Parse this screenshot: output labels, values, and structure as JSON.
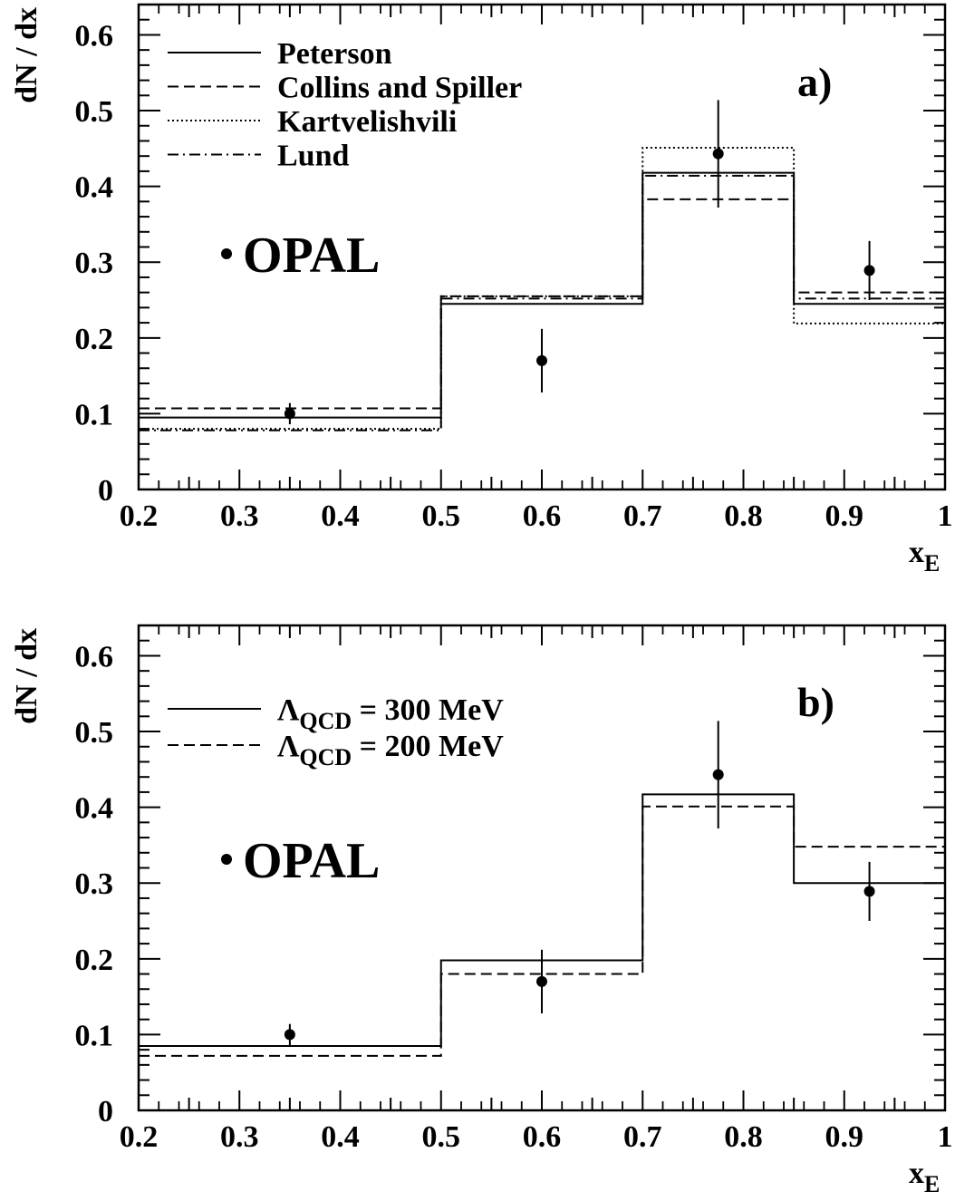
{
  "chart_data": [
    {
      "type": "line",
      "panel_label": "a)",
      "xlabel_main": "x",
      "xlabel_sub": "E",
      "ylabel": "dN / dx",
      "xlim": [
        0.2,
        1.0
      ],
      "ylim": [
        0,
        0.64
      ],
      "x_ticks": [
        "0.2",
        "0.3",
        "0.4",
        "0.5",
        "0.6",
        "0.7",
        "0.8",
        "0.9",
        "1"
      ],
      "y_ticks": [
        "0",
        "0.1",
        "0.2",
        "0.3",
        "0.4",
        "0.5",
        "0.6"
      ],
      "bin_edges": [
        0.2,
        0.5,
        0.7,
        0.85,
        1.0
      ],
      "series": [
        {
          "name": "Peterson",
          "style": "solid",
          "values": [
            0.095,
            0.245,
            0.418,
            0.245
          ]
        },
        {
          "name": "Collins and Spiller",
          "style": "dashed",
          "values": [
            0.107,
            0.255,
            0.383,
            0.26
          ]
        },
        {
          "name": "Kartvelishvili",
          "style": "dotted",
          "values": [
            0.08,
            0.255,
            0.451,
            0.219
          ]
        },
        {
          "name": "Lund",
          "style": "dashdot",
          "values": [
            0.078,
            0.252,
            0.414,
            0.252
          ]
        }
      ],
      "data_points": {
        "name": "OPAL",
        "points": [
          {
            "x": 0.35,
            "y": 0.1,
            "err": 0.014
          },
          {
            "x": 0.6,
            "y": 0.17,
            "err": 0.042
          },
          {
            "x": 0.775,
            "y": 0.443,
            "err": 0.071
          },
          {
            "x": 0.925,
            "y": 0.289,
            "err": 0.039
          }
        ]
      },
      "legend_position": "top-left",
      "grid": false
    },
    {
      "type": "line",
      "panel_label": "b)",
      "xlabel_main": "x",
      "xlabel_sub": "E",
      "ylabel": "dN / dx",
      "xlim": [
        0.2,
        1.0
      ],
      "ylim": [
        0,
        0.64
      ],
      "x_ticks": [
        "0.2",
        "0.3",
        "0.4",
        "0.5",
        "0.6",
        "0.7",
        "0.8",
        "0.9",
        "1"
      ],
      "y_ticks": [
        "0",
        "0.1",
        "0.2",
        "0.3",
        "0.4",
        "0.5",
        "0.6"
      ],
      "bin_edges": [
        0.2,
        0.5,
        0.7,
        0.85,
        1.0
      ],
      "series": [
        {
          "name": "Λ_QCD = 300 MeV",
          "label_main": "Λ",
          "label_sub": "QCD",
          "label_rest": " = 300 MeV",
          "style": "solid",
          "values": [
            0.085,
            0.198,
            0.417,
            0.3
          ]
        },
        {
          "name": "Λ_QCD = 200 MeV",
          "label_main": "Λ",
          "label_sub": "QCD",
          "label_rest": " = 200 MeV",
          "style": "dashed",
          "values": [
            0.072,
            0.18,
            0.401,
            0.348
          ]
        }
      ],
      "data_points": {
        "name": "OPAL",
        "points": [
          {
            "x": 0.35,
            "y": 0.1,
            "err": 0.014
          },
          {
            "x": 0.6,
            "y": 0.17,
            "err": 0.042
          },
          {
            "x": 0.775,
            "y": 0.443,
            "err": 0.071
          },
          {
            "x": 0.925,
            "y": 0.289,
            "err": 0.039
          }
        ]
      },
      "legend_position": "top-left",
      "grid": false
    }
  ]
}
